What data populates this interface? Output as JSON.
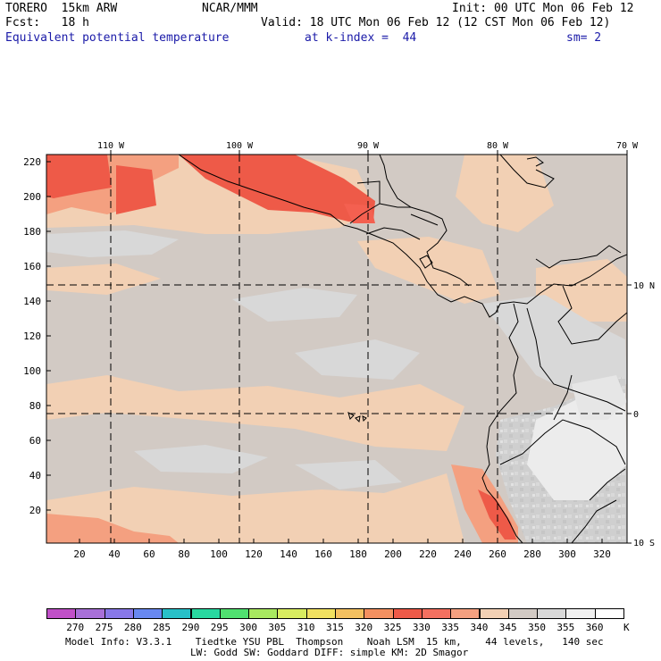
{
  "header": {
    "model": "TORERO  15km ARW",
    "center": "NCAR/MMM",
    "init": "Init: 00 UTC Mon 06 Feb 12",
    "fcst": "Fcst:   18 h",
    "valid": "Valid: 18 UTC Mon 06 Feb 12 (12 CST Mon 06 Feb 12)",
    "field": "Equivalent potential temperature",
    "level": "at k-index =  44",
    "smooth": "sm= 2"
  },
  "map": {
    "lon_labels": [
      "110 W",
      "100 W",
      "90 W",
      "80 W",
      "70 W"
    ],
    "lat_labels": [
      "10 N",
      "0",
      "10 S"
    ],
    "y_ticks": [
      "220",
      "200",
      "180",
      "160",
      "140",
      "120",
      "100",
      "80",
      "60",
      "40",
      "20"
    ],
    "x_ticks": [
      "20",
      "40",
      "60",
      "80",
      "100",
      "120",
      "140",
      "160",
      "180",
      "200",
      "220",
      "240",
      "260",
      "280",
      "300",
      "320"
    ]
  },
  "colorbar": {
    "labels": [
      "270",
      "275",
      "280",
      "285",
      "290",
      "295",
      "300",
      "305",
      "310",
      "315",
      "320",
      "325",
      "330",
      "335",
      "340",
      "345",
      "350",
      "355",
      "360"
    ],
    "unit": "K",
    "colors": [
      "#c050c8",
      "#a870d8",
      "#8878e8",
      "#6888f0",
      "#28c0c8",
      "#28d8a0",
      "#50e070",
      "#a8e860",
      "#d8ec60",
      "#f0e060",
      "#f4c060",
      "#f49060",
      "#ee5a48",
      "#f47060",
      "#f4a080",
      "#f2d0b4",
      "#d2cac4",
      "#d8d8d8",
      "#f0f0f0",
      "#ffffff"
    ]
  },
  "footer": {
    "line1": "Model Info: V3.3.1    Tiedtke YSU PBL  Thompson    Noah LSM  15 km,    44 levels,   140 sec",
    "line2": "LW: Godd SW: Goddard DIFF: simple KM: 2D Smagor"
  }
}
